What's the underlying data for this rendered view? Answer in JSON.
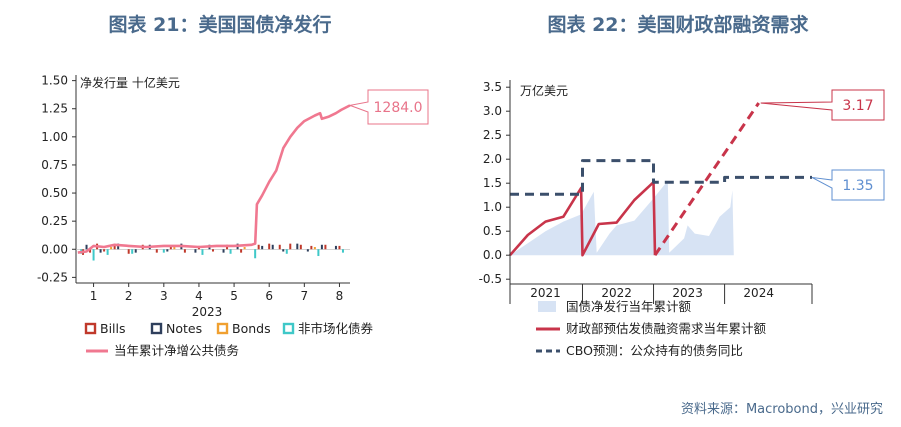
{
  "titles": {
    "left": "图表 21：美国国债净发行",
    "right": "图表 22：美国财政部融资需求"
  },
  "source": "资料来源：Macrobond，兴业研究",
  "chart_data": [
    {
      "type": "bar",
      "ylabel": "净发行量 十亿美元",
      "ylim": [
        -0.3,
        1.55
      ],
      "yticks": [
        "1.50",
        "1.25",
        "1.00",
        "0.75",
        "0.50",
        "0.25",
        "0.00",
        "-0.25"
      ],
      "ytick_values": [
        1.5,
        1.25,
        1.0,
        0.75,
        0.5,
        0.25,
        0.0,
        -0.25
      ],
      "xlim": [
        0.5,
        8.3
      ],
      "xticks": [
        "1",
        "2",
        "3",
        "4",
        "5",
        "6",
        "7",
        "8"
      ],
      "xtick_values": [
        1,
        2,
        3,
        4,
        5,
        6,
        7,
        8
      ],
      "xlabel": "2023",
      "callout": {
        "text": "1284.0",
        "color": "#e8748a"
      },
      "colors": {
        "Bills": "#c0392b",
        "Notes": "#2e3f5c",
        "Bonds": "#f0a030",
        "非市场化债券": "#3fc8c8",
        "当年累计净增公共债务": "#f07890"
      },
      "legend": [
        {
          "name": "Bills",
          "kind": "box"
        },
        {
          "name": "Notes",
          "kind": "box"
        },
        {
          "name": "Bonds",
          "kind": "box"
        },
        {
          "name": "非市场化债券",
          "kind": "box"
        },
        {
          "name": "当年累计净增公共债务",
          "kind": "line"
        }
      ],
      "series": [
        {
          "name": "当年累计净增公共债务",
          "type": "line",
          "points": [
            [
              0.55,
              -0.03
            ],
            [
              0.8,
              -0.02
            ],
            [
              1.0,
              0.03
            ],
            [
              1.3,
              0.02
            ],
            [
              1.6,
              0.04
            ],
            [
              2.0,
              0.03
            ],
            [
              2.5,
              0.02
            ],
            [
              3.0,
              0.03
            ],
            [
              3.5,
              0.03
            ],
            [
              4.0,
              0.02
            ],
            [
              4.5,
              0.03
            ],
            [
              5.0,
              0.03
            ],
            [
              5.5,
              0.04
            ],
            [
              5.6,
              0.05
            ],
            [
              5.65,
              0.4
            ],
            [
              5.8,
              0.48
            ],
            [
              6.0,
              0.6
            ],
            [
              6.2,
              0.7
            ],
            [
              6.4,
              0.9
            ],
            [
              6.6,
              1.0
            ],
            [
              6.8,
              1.08
            ],
            [
              7.0,
              1.14
            ],
            [
              7.3,
              1.19
            ],
            [
              7.45,
              1.21
            ],
            [
              7.5,
              1.16
            ],
            [
              7.7,
              1.18
            ],
            [
              7.9,
              1.21
            ],
            [
              8.05,
              1.24
            ],
            [
              8.3,
              1.28
            ]
          ]
        },
        {
          "name": "Bills",
          "type": "bar",
          "points": [
            [
              0.7,
              -0.05
            ],
            [
              0.9,
              -0.03
            ],
            [
              1.1,
              0.05
            ],
            [
              1.3,
              -0.02
            ],
            [
              1.6,
              0.03
            ],
            [
              2.0,
              -0.04
            ],
            [
              2.4,
              0.04
            ],
            [
              2.8,
              -0.03
            ],
            [
              3.2,
              0.03
            ],
            [
              3.6,
              -0.03
            ],
            [
              4.0,
              0.03
            ],
            [
              4.4,
              -0.02
            ],
            [
              4.8,
              0.04
            ],
            [
              5.2,
              -0.03
            ],
            [
              5.7,
              0.04
            ],
            [
              6.0,
              0.05
            ],
            [
              6.3,
              0.04
            ],
            [
              6.6,
              0.05
            ],
            [
              6.9,
              0.04
            ],
            [
              7.2,
              0.03
            ],
            [
              7.6,
              0.04
            ],
            [
              8.0,
              0.03
            ]
          ]
        },
        {
          "name": "Notes",
          "type": "bar",
          "points": [
            [
              0.8,
              0.04
            ],
            [
              1.2,
              -0.03
            ],
            [
              1.7,
              0.05
            ],
            [
              2.2,
              -0.03
            ],
            [
              2.6,
              0.04
            ],
            [
              3.1,
              -0.02
            ],
            [
              3.5,
              0.05
            ],
            [
              3.9,
              -0.03
            ],
            [
              4.3,
              0.04
            ],
            [
              4.7,
              -0.03
            ],
            [
              5.1,
              0.05
            ],
            [
              5.8,
              0.03
            ],
            [
              6.1,
              0.04
            ],
            [
              6.4,
              -0.02
            ],
            [
              6.8,
              0.05
            ],
            [
              7.1,
              -0.02
            ],
            [
              7.5,
              0.04
            ],
            [
              7.9,
              0.03
            ]
          ]
        },
        {
          "name": "Bonds",
          "type": "bar",
          "points": [
            [
              1.5,
              0.02
            ],
            [
              3.3,
              0.02
            ],
            [
              5.3,
              0.02
            ],
            [
              7.3,
              0.02
            ]
          ]
        },
        {
          "name": "非市场化债券",
          "type": "bar",
          "points": [
            [
              0.65,
              -0.04
            ],
            [
              1.0,
              -0.1
            ],
            [
              1.4,
              -0.05
            ],
            [
              2.1,
              -0.04
            ],
            [
              3.0,
              -0.03
            ],
            [
              4.1,
              -0.05
            ],
            [
              4.9,
              -0.04
            ],
            [
              5.6,
              -0.08
            ],
            [
              6.5,
              -0.04
            ],
            [
              7.4,
              -0.06
            ],
            [
              8.1,
              -0.03
            ]
          ]
        }
      ]
    },
    {
      "type": "line",
      "ylabel": "万亿美元",
      "ylim": [
        -0.6,
        3.65
      ],
      "yticks": [
        "3.5",
        "3.0",
        "2.5",
        "2.0",
        "1.5",
        "1.0",
        "0.5",
        "0.0",
        "-0.5"
      ],
      "ytick_values": [
        3.5,
        3.0,
        2.5,
        2.0,
        1.5,
        1.0,
        0.5,
        0.0,
        -0.5
      ],
      "xlim": [
        2020.5,
        2024.75
      ],
      "xticks": [
        "2021",
        "2022",
        "2023",
        "2024"
      ],
      "xtick_values": [
        2021,
        2022,
        2023,
        2024
      ],
      "callouts": [
        {
          "text": "3.17",
          "color": "#c8344a"
        },
        {
          "text": "1.35",
          "color": "#5f8fd0"
        }
      ],
      "legend": [
        {
          "name": "国债净发行当年累计额",
          "kind": "area",
          "color": "#d7e3f4"
        },
        {
          "name": "财政部预估发债融资需求当年累计额",
          "kind": "solid",
          "color": "#c8344a"
        },
        {
          "name": "CBO预测：公众持有的债务同比",
          "kind": "dash",
          "color": "#3b4f6b"
        }
      ],
      "series": [
        {
          "name": "国债净发行当年累计额",
          "type": "area",
          "color": "#d7e3f4",
          "points": [
            [
              2020.5,
              0.0
            ],
            [
              2020.75,
              0.25
            ],
            [
              2021.0,
              0.5
            ],
            [
              2021.25,
              0.7
            ],
            [
              2021.5,
              0.85
            ],
            [
              2021.68,
              1.32
            ],
            [
              2021.72,
              0.05
            ],
            [
              2021.9,
              0.45
            ],
            [
              2022.0,
              0.62
            ],
            [
              2022.25,
              0.72
            ],
            [
              2022.5,
              1.15
            ],
            [
              2022.72,
              1.55
            ],
            [
              2022.74,
              0.05
            ],
            [
              2022.95,
              0.35
            ],
            [
              2023.0,
              0.62
            ],
            [
              2023.1,
              0.45
            ],
            [
              2023.3,
              0.4
            ],
            [
              2023.45,
              0.8
            ],
            [
              2023.6,
              1.0
            ],
            [
              2023.63,
              1.35
            ],
            [
              2023.65,
              0.0
            ]
          ]
        },
        {
          "name": "财政部预估发债融资需求当年累计额",
          "type": "line",
          "dash": false,
          "color": "#c8344a",
          "points": [
            [
              2020.5,
              0.0
            ],
            [
              2020.75,
              0.42
            ],
            [
              2021.0,
              0.7
            ],
            [
              2021.25,
              0.8
            ],
            [
              2021.5,
              1.4
            ],
            [
              2021.52,
              0.0
            ],
            [
              2021.75,
              0.65
            ],
            [
              2022.0,
              0.68
            ],
            [
              2022.25,
              1.15
            ],
            [
              2022.52,
              1.52
            ],
            [
              2022.54,
              0.0
            ]
          ]
        },
        {
          "name": "财政部预估发债融资需求当年累计额(预测)",
          "type": "line",
          "dash": true,
          "color": "#c8344a",
          "points": [
            [
              2022.54,
              0.0
            ],
            [
              2023.0,
              1.0
            ],
            [
              2023.6,
              2.3
            ],
            [
              2024.0,
              3.17
            ]
          ]
        },
        {
          "name": "CBO预测：公众持有的债务同比",
          "type": "step",
          "dash": true,
          "color": "#3b4f6b",
          "points": [
            [
              2020.5,
              1.27
            ],
            [
              2021.52,
              1.27
            ],
            [
              2021.52,
              1.97
            ],
            [
              2022.52,
              1.97
            ],
            [
              2022.52,
              1.52
            ],
            [
              2023.52,
              1.52
            ],
            [
              2023.52,
              1.62
            ],
            [
              2024.75,
              1.62
            ]
          ]
        }
      ]
    }
  ]
}
